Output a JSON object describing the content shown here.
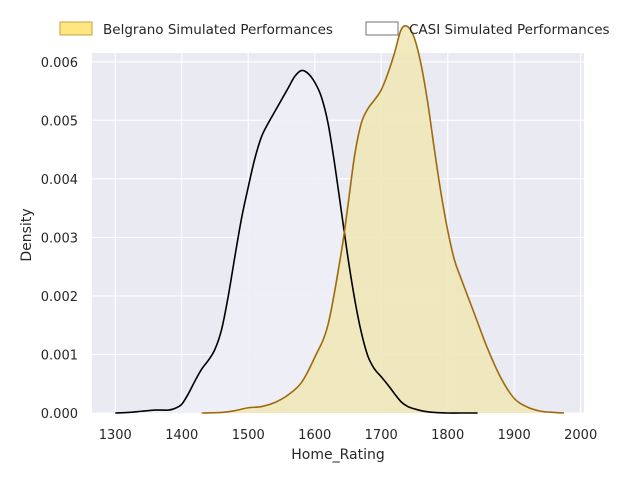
{
  "chart_data": {
    "type": "area",
    "xlabel": "Home_Rating",
    "ylabel": "Density",
    "xlim": [
      1265,
      2005
    ],
    "ylim": [
      0,
      0.00615
    ],
    "x_ticks": [
      1300,
      1400,
      1500,
      1600,
      1700,
      1800,
      1900,
      2000
    ],
    "y_ticks": [
      0.0,
      0.001,
      0.002,
      0.003,
      0.004,
      0.005,
      0.006
    ],
    "x_tick_labels": [
      "1300",
      "1400",
      "1500",
      "1600",
      "1700",
      "1800",
      "1900",
      "2000"
    ],
    "y_tick_labels": [
      "0.000",
      "0.001",
      "0.002",
      "0.003",
      "0.004",
      "0.005",
      "0.006"
    ],
    "grid": true,
    "background_color": "#eaeaf2",
    "legend_position": "top",
    "series": [
      {
        "name": "Belgrano Simulated Performances",
        "line_color": "#9e6b0c",
        "fill_color": "#f0e6b4",
        "legend_fill_color": "#ffe680",
        "legend_edge_color": "#c8a340",
        "filled": true,
        "x": [
          1430,
          1460,
          1480,
          1500,
          1520,
          1540,
          1560,
          1580,
          1600,
          1620,
          1640,
          1650,
          1660,
          1670,
          1680,
          1690,
          1700,
          1710,
          1720,
          1730,
          1740,
          1750,
          1760,
          1770,
          1780,
          1790,
          1800,
          1810,
          1820,
          1840,
          1860,
          1880,
          1900,
          1920,
          1940,
          1960,
          1975
        ],
        "y": [
          0.0,
          1e-05,
          4e-05,
          9e-05,
          0.00011,
          0.00018,
          0.00031,
          0.00052,
          0.00095,
          0.00151,
          0.00275,
          0.00355,
          0.0044,
          0.00495,
          0.0052,
          0.00535,
          0.00552,
          0.0058,
          0.00615,
          0.00655,
          0.0066,
          0.0064,
          0.00595,
          0.0053,
          0.0045,
          0.00375,
          0.00312,
          0.00262,
          0.0023,
          0.0017,
          0.0011,
          0.0006,
          0.00025,
          0.0001,
          3e-05,
          1e-05,
          0.0
        ]
      },
      {
        "name": "CASI Simulated Performances",
        "line_color": "#000000",
        "fill_color": "#eeeef6",
        "legend_fill_color": "#ffffff",
        "legend_edge_color": "#707070",
        "filled": true,
        "x": [
          1300,
          1320,
          1340,
          1360,
          1380,
          1390,
          1400,
          1410,
          1420,
          1430,
          1440,
          1450,
          1460,
          1470,
          1480,
          1490,
          1500,
          1510,
          1520,
          1530,
          1540,
          1550,
          1560,
          1570,
          1580,
          1590,
          1600,
          1610,
          1620,
          1630,
          1640,
          1650,
          1660,
          1670,
          1680,
          1690,
          1700,
          1710,
          1720,
          1730,
          1740,
          1750,
          1760,
          1770,
          1780,
          1800,
          1820,
          1845
        ],
        "y": [
          0.0,
          1e-05,
          3e-05,
          5e-05,
          5e-05,
          8e-05,
          0.00015,
          0.00033,
          0.00055,
          0.00075,
          0.0009,
          0.00109,
          0.00143,
          0.002,
          0.00268,
          0.00333,
          0.00386,
          0.00435,
          0.00472,
          0.00495,
          0.00515,
          0.00535,
          0.00555,
          0.00575,
          0.00585,
          0.0058,
          0.00565,
          0.0054,
          0.00495,
          0.00425,
          0.00345,
          0.00265,
          0.00195,
          0.00138,
          0.00097,
          0.00075,
          0.00062,
          0.00048,
          0.00033,
          0.00019,
          0.00011,
          7e-05,
          4e-05,
          2e-05,
          1e-05,
          0.0,
          0.0,
          0.0
        ]
      }
    ]
  }
}
